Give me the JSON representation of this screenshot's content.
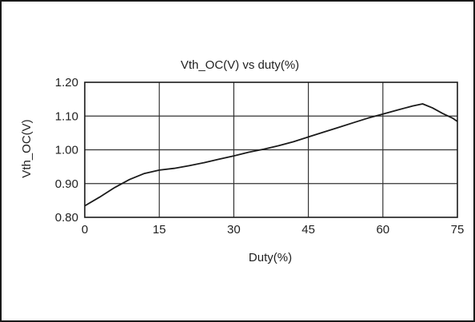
{
  "chart_data": {
    "type": "line",
    "title": "Vth_OC(V) vs duty(%)",
    "xlabel": "Duty(%)",
    "ylabel": "Vth_OC(V)",
    "xlim": [
      0,
      75
    ],
    "ylim": [
      0.8,
      1.2
    ],
    "x_ticks": [
      "0",
      "15",
      "30",
      "45",
      "60",
      "75"
    ],
    "y_ticks": [
      "1.20",
      "1.10",
      "1.00",
      "0.90",
      "0.80"
    ],
    "grid": true,
    "legend": "none",
    "colors": {
      "line": "#1a1a1a",
      "grid": "#333333",
      "plot_bg": "#ffffff",
      "frame": "#1a1a1a"
    },
    "series": [
      {
        "x": [
          0,
          3,
          6,
          9,
          12,
          15,
          18,
          21,
          24,
          27,
          30,
          33,
          36,
          39,
          42,
          45,
          48,
          51,
          54,
          57,
          60,
          63,
          66,
          68,
          70,
          72,
          74,
          75
        ],
        "y": [
          0.834,
          0.86,
          0.888,
          0.912,
          0.93,
          0.94,
          0.945,
          0.953,
          0.962,
          0.972,
          0.982,
          0.993,
          1.002,
          1.012,
          1.024,
          1.038,
          1.052,
          1.066,
          1.08,
          1.094,
          1.106,
          1.118,
          1.13,
          1.136,
          1.124,
          1.108,
          1.094,
          1.084
        ]
      }
    ]
  }
}
